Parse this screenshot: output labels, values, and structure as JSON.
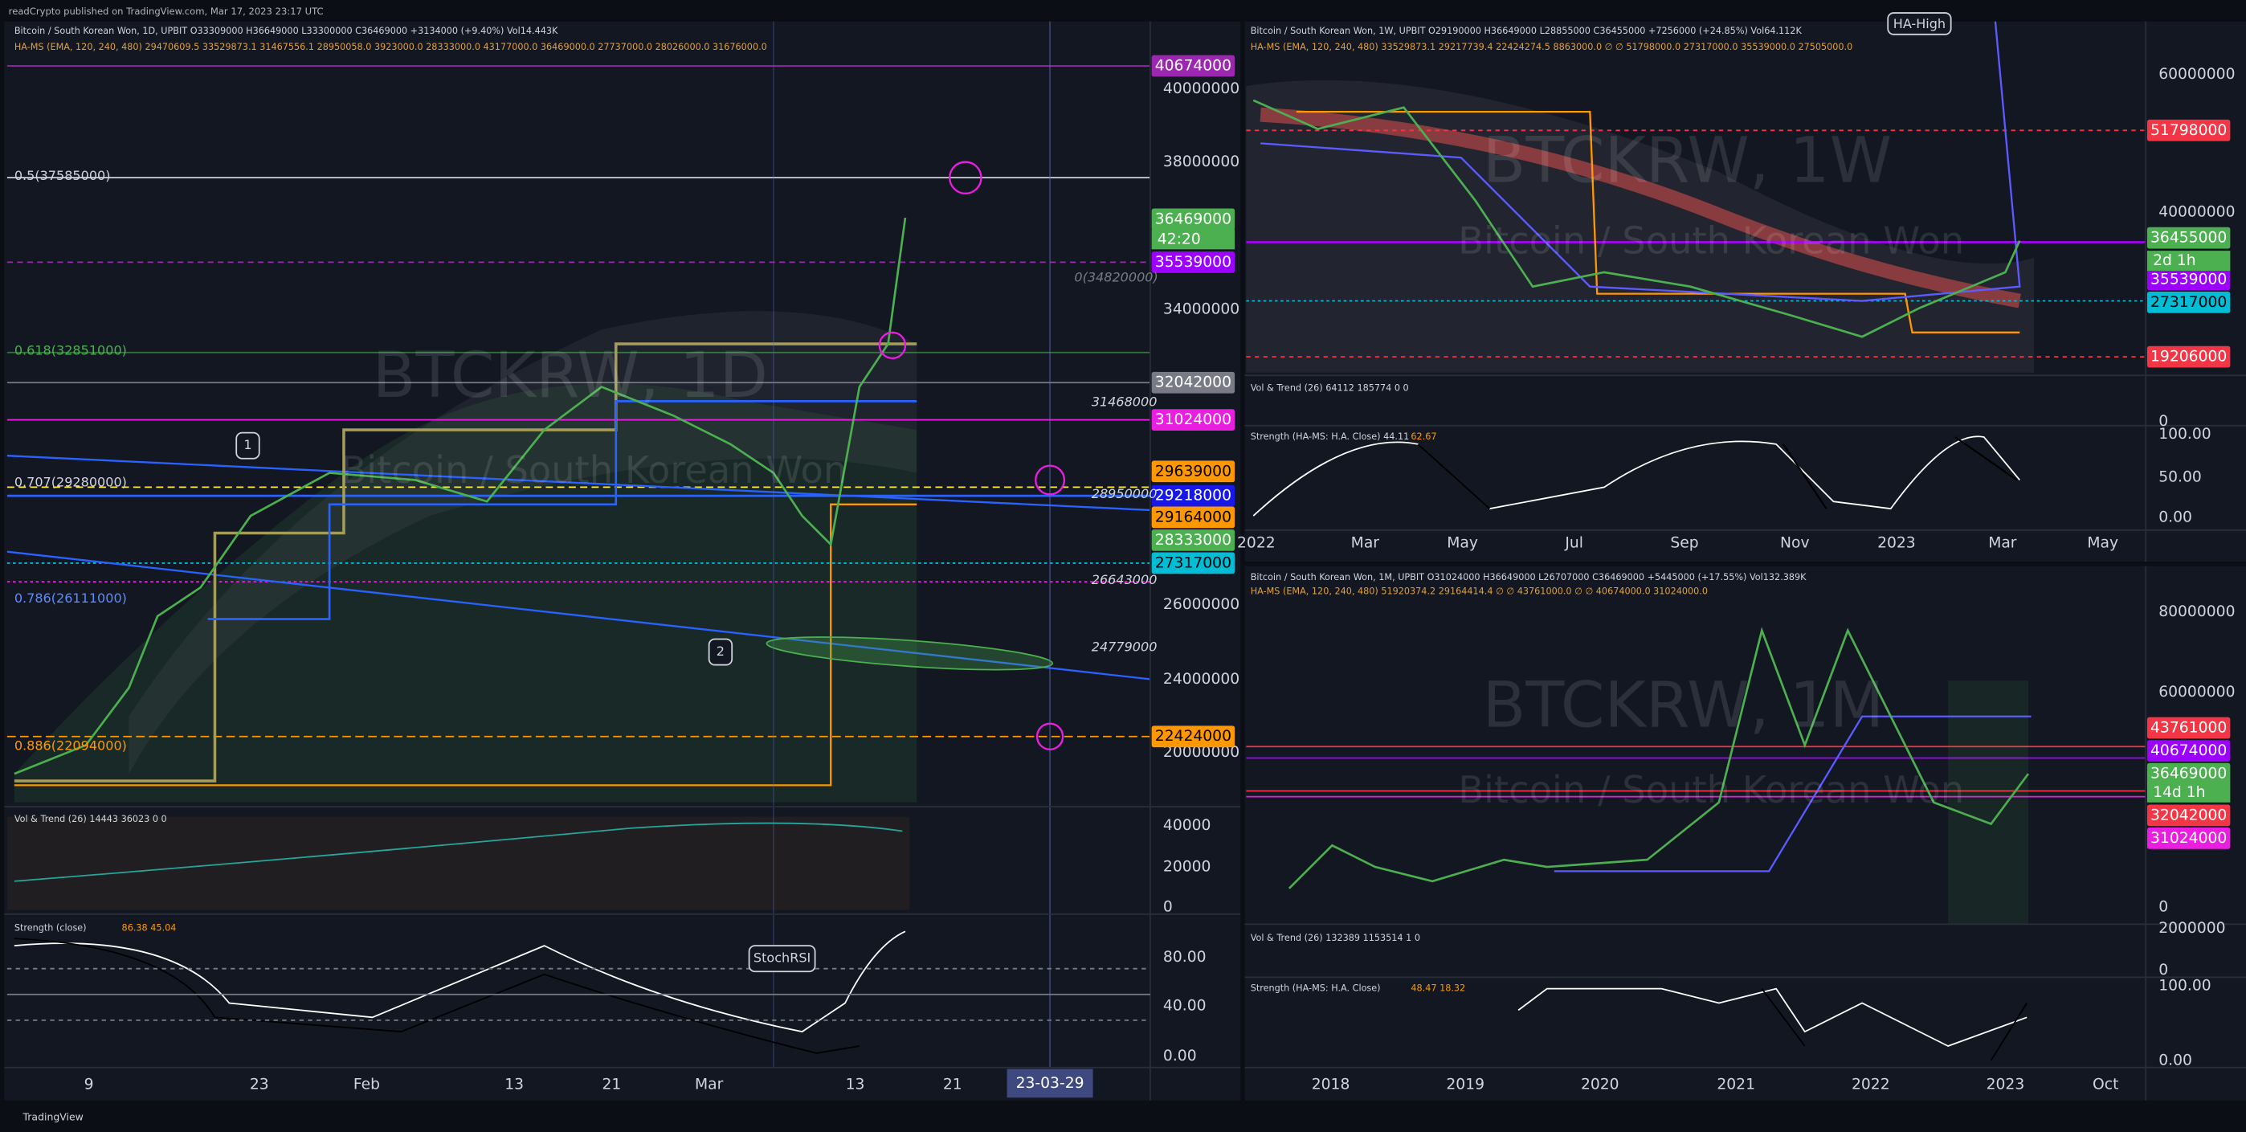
{
  "header": {
    "publisher": "readCrypto published on TradingView.com, Mar 17, 2023 23:17 UTC"
  },
  "footer": {
    "brand": "TradingView"
  },
  "daily": {
    "legend": [
      "Bitcoin / South Korean Won, 1D, UPBIT  O33309000 H36649000 L33300000 C36469000 +3134000 (+9.40%) Vol14.443K",
      "HA-MS (EMA, 120, 240, 480)  29470609.5  33529873.1  31467556.1  28950058.0  3923000.0  28333000.0  43177000.0  36469000.0  27737000.0  28026000.0  31676000.0"
    ],
    "watermark": [
      "BTCKRW, 1D",
      "Bitcoin / South Korean Won"
    ],
    "price_axis": [
      "40000000",
      "38000000",
      "34000000",
      "26000000",
      "24000000",
      "20000000"
    ],
    "price_labels": [
      "40674000",
      "36469000",
      "35539000",
      "32042000",
      "31024000",
      "29639000",
      "29218000",
      "29164000",
      "28333000",
      "27317000",
      "22424000"
    ],
    "countdown": "42:20",
    "annotations": [
      "0.5(37585000)",
      "0(34820000)",
      "0.618(32851000)",
      "31468000",
      "0.707(29280000)",
      "28950000",
      "26643000",
      "0.786(26111000)",
      "24779000",
      "0.886(22094000)"
    ],
    "markers": [
      "1",
      "2",
      "StochRSI"
    ],
    "time_axis": [
      "9",
      "23",
      "Feb",
      "13",
      "21",
      "Mar",
      "13",
      "21"
    ],
    "cursor_date": "23-03-29",
    "volume_pane": {
      "legend": "Vol & Trend (26)  14443  36023  0  0",
      "axis": [
        "40000",
        "20000",
        "0"
      ]
    },
    "strength_pane": {
      "legend": "Strength (close)",
      "values": "86.38  45.04",
      "axis": [
        "80.00",
        "40.00",
        "0.00"
      ]
    }
  },
  "weekly": {
    "legend": [
      "Bitcoin / South Korean Won, 1W, UPBIT  O29190000 H36649000 L28855000 C36455000 +7256000 (+24.85%) Vol64.112K",
      "HA-MS (EMA, 120, 240, 480)  33529873.1  29217739.4  22424274.5  8863000.0  ∅  ∅  51798000.0  27317000.0  35539000.0  27505000.0"
    ],
    "watermark": [
      "BTCKRW, 1W",
      "Bitcoin / South Korean Won"
    ],
    "price_axis": [
      "60000000",
      "40000000"
    ],
    "price_labels": [
      "51798000",
      "36455000",
      "35539000",
      "27317000",
      "19206000"
    ],
    "countdown": "2d 1h",
    "markers": [
      "HA-High"
    ],
    "time_axis": [
      "2022",
      "Mar",
      "May",
      "Jul",
      "Sep",
      "Nov",
      "2023",
      "Mar",
      "May"
    ],
    "volume_pane": {
      "legend": "Vol & Trend (26)  64112  185774  0  0",
      "axis": [
        "0"
      ]
    },
    "strength_pane": {
      "legend": "Strength (HA-MS: H.A. Close)  44.11",
      "values": "62.67",
      "axis": [
        "100.00",
        "50.00",
        "0.00"
      ]
    }
  },
  "monthly": {
    "legend": [
      "Bitcoin / South Korean Won, 1M, UPBIT  O31024000 H36649000 L26707000 C36469000 +5445000 (+17.55%) Vol132.389K",
      "HA-MS (EMA, 120, 240, 480)  51920374.2  29164414.4  ∅  ∅  43761000.0  ∅  ∅  40674000.0  31024000.0"
    ],
    "watermark": [
      "BTCKRW, 1M",
      "Bitcoin / South Korean Won"
    ],
    "price_axis": [
      "80000000",
      "60000000",
      "0"
    ],
    "price_labels": [
      "43761000",
      "40674000",
      "36469000",
      "32042000",
      "31024000"
    ],
    "countdown": "14d 1h",
    "time_axis": [
      "2018",
      "2019",
      "2020",
      "2021",
      "2022",
      "2023",
      "Oct"
    ],
    "volume_pane": {
      "legend": "Vol & Trend (26)  132389  1153514  1  0",
      "axis": [
        "2000000",
        "0"
      ]
    },
    "strength_pane": {
      "legend": "Strength (HA-MS: H.A. Close)",
      "values": "48.47  18.32",
      "axis": [
        "100.00",
        "0.00"
      ]
    }
  }
}
